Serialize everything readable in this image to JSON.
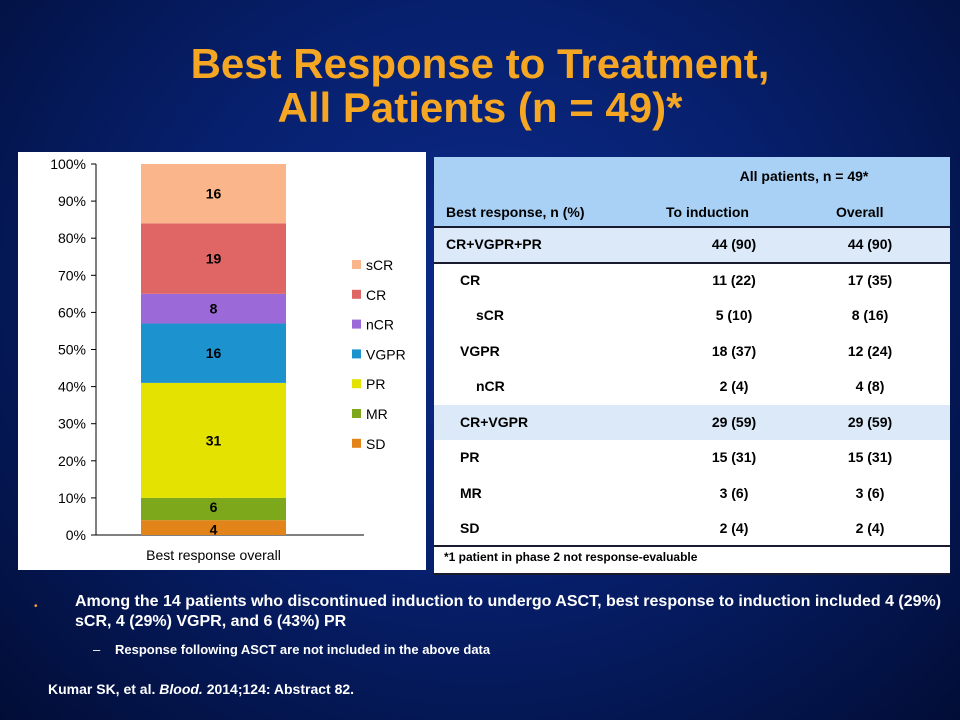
{
  "title_line1": "Best Response to Treatment,",
  "title_line2": "All Patients (n = 49)*",
  "chart_data": {
    "type": "bar",
    "stacked": true,
    "categories": [
      "Best response overall"
    ],
    "y_ticks": [
      "0%",
      "10%",
      "20%",
      "30%",
      "40%",
      "50%",
      "60%",
      "70%",
      "80%",
      "90%",
      "100%"
    ],
    "ylim": [
      0,
      100
    ],
    "series": [
      {
        "name": "SD",
        "values": [
          4
        ],
        "color": "#e3841a"
      },
      {
        "name": "MR",
        "values": [
          6
        ],
        "color": "#7ea81c"
      },
      {
        "name": "PR",
        "values": [
          31
        ],
        "color": "#e3e200"
      },
      {
        "name": "VGPR",
        "values": [
          16
        ],
        "color": "#1c93cf"
      },
      {
        "name": "nCR",
        "values": [
          8
        ],
        "color": "#9b6ad8"
      },
      {
        "name": "CR",
        "values": [
          19
        ],
        "color": "#e06666"
      },
      {
        "name": "sCR",
        "values": [
          16
        ],
        "color": "#fbb58a"
      }
    ],
    "legend_order": [
      "sCR",
      "CR",
      "nCR",
      "VGPR",
      "PR",
      "MR",
      "SD"
    ],
    "legend_position": "right",
    "grid": false
  },
  "table": {
    "group_header": "All patients, n = 49*",
    "col_headers": [
      "Best response, n (%)",
      "To induction",
      "Overall"
    ],
    "rows": [
      {
        "label": "CR+VGPR+PR",
        "induction": "44 (90)",
        "overall": "44 (90)",
        "highlight": true
      },
      {
        "label": "CR",
        "induction": "11 (22)",
        "overall": "17 (35)",
        "highlight": false
      },
      {
        "label": "sCR",
        "induction": "5 (10)",
        "overall": "8 (16)",
        "highlight": false
      },
      {
        "label": "VGPR",
        "induction": "18 (37)",
        "overall": "12 (24)",
        "highlight": false
      },
      {
        "label": "nCR",
        "induction": "2 (4)",
        "overall": "4 (8)",
        "highlight": false
      },
      {
        "label": "CR+VGPR",
        "induction": "29 (59)",
        "overall": "29 (59)",
        "highlight": true
      },
      {
        "label": "PR",
        "induction": "15 (31)",
        "overall": "15 (31)",
        "highlight": false
      },
      {
        "label": "MR",
        "induction": "3 (6)",
        "overall": "3 (6)",
        "highlight": false
      },
      {
        "label": "SD",
        "induction": "2 (4)",
        "overall": "2 (4)",
        "highlight": false
      }
    ],
    "footnote": "*1 patient in phase 2 not response-evaluable"
  },
  "bullet": "Among the 14 patients who discontinued induction to undergo ASCT, best response to induction included 4 (29%) sCR, 4 (29%) VGPR, and 6 (43%) PR",
  "sub_bullet": "Response following ASCT are not included in the above data",
  "citation": {
    "authors": "Kumar SK, et al. ",
    "journal": "Blood.",
    "rest": " 2014;124: Abstract 82."
  },
  "colors": {
    "title": "#f5a623",
    "header_bg": "#a9d1f5",
    "highlight_row_bg": "#dbe9f8"
  }
}
